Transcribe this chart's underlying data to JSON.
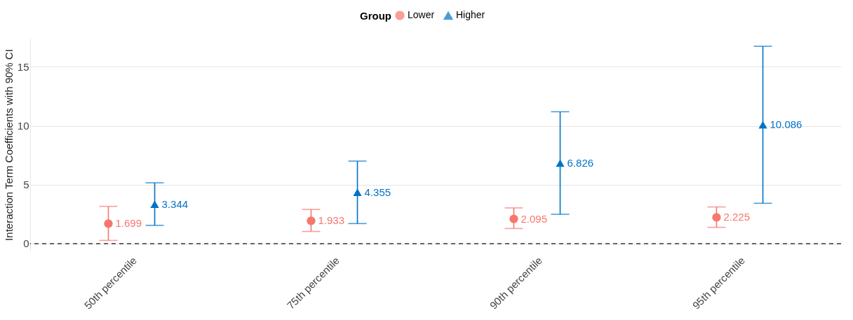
{
  "chart_data": {
    "type": "scatter",
    "ylabel": "Interaction Term Coefficients with 90% CI",
    "legend_title": "Group",
    "categories": [
      "50th percentile",
      "75th percentile",
      "90th percentile",
      "95th percentile"
    ],
    "series": [
      {
        "name": "Lower",
        "color": "#f8766d",
        "marker": "circle",
        "values": [
          1.699,
          1.933,
          2.095,
          2.225
        ],
        "errors": [
          [
            0.27,
            3.16
          ],
          [
            1.03,
            2.9
          ],
          [
            1.28,
            3.03
          ],
          [
            1.38,
            3.11
          ]
        ]
      },
      {
        "name": "Higher",
        "color": "#0072c6",
        "marker": "triangle",
        "values": [
          3.344,
          4.355,
          6.826,
          10.086
        ],
        "errors": [
          [
            1.55,
            5.16
          ],
          [
            1.7,
            7.0
          ],
          [
            2.49,
            11.19
          ],
          [
            3.42,
            16.74
          ]
        ]
      }
    ],
    "ylim": [
      -0.6,
      17.4
    ],
    "yticks": [
      0,
      5,
      10,
      15
    ],
    "grid": "y",
    "legend": "top",
    "data_labels": true,
    "ref_lines": [
      {
        "axis": "y",
        "value": 0,
        "color": "#666666",
        "line_style": "dashed"
      }
    ]
  }
}
